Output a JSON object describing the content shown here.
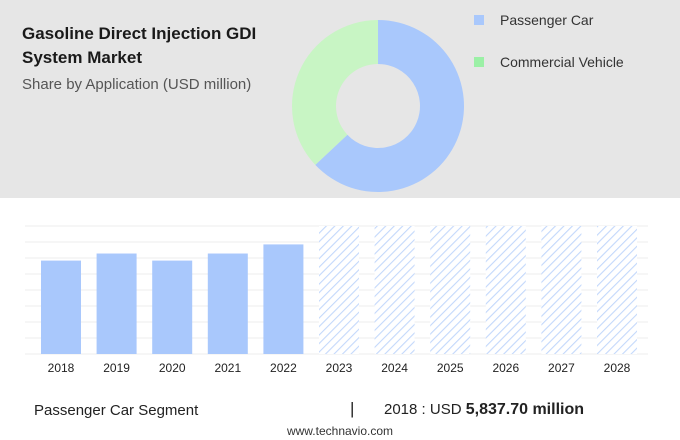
{
  "header": {
    "title": "Gasoline Direct Injection GDI System Market",
    "subtitle": "Share by Application (USD million)"
  },
  "legend": [
    {
      "label": "Passenger Car",
      "color": "#a9c8fc"
    },
    {
      "label": "Commercial Vehicle",
      "color": "#9bf0a6"
    }
  ],
  "chart_data": [
    {
      "type": "pie",
      "categories": [
        "Passenger Car",
        "Commercial Vehicle"
      ],
      "values": [
        63,
        37
      ],
      "colors": [
        "#a9c8fc",
        "#c8f5c4"
      ],
      "donut": true
    },
    {
      "type": "bar",
      "categories": [
        "2018",
        "2019",
        "2020",
        "2021",
        "2022",
        "2023",
        "2024",
        "2025",
        "2026",
        "2027",
        "2028"
      ],
      "values": [
        5837.7,
        6280,
        5837.7,
        6280,
        6850,
        null,
        null,
        null,
        null,
        null,
        null
      ],
      "forecast_from": "2023",
      "color": "#a9c8fc",
      "grid": true
    }
  ],
  "footer": {
    "segment_label": "Passenger Car Segment",
    "separator": "|",
    "value_prefix": "2018 : USD",
    "value": "5,837.70 million"
  },
  "source": "www.technavio.com"
}
